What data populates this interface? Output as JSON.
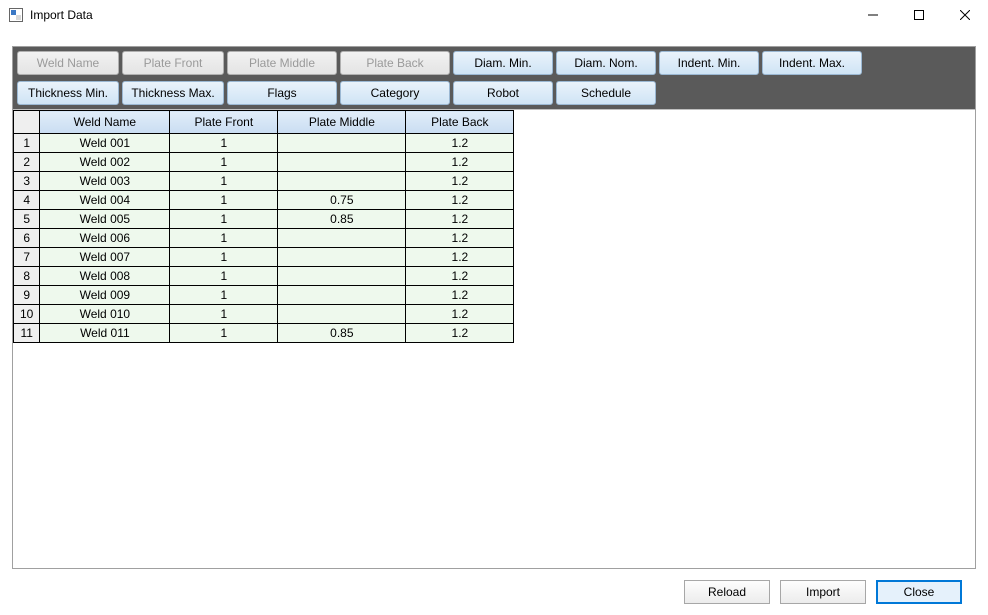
{
  "window": {
    "title": "Import Data",
    "icon_colors": {
      "top_left": "#3b78c4",
      "bottom_right": "#ffffff",
      "border": "#666666"
    }
  },
  "toolbar": {
    "row1": [
      {
        "label": "Weld Name",
        "disabled": true,
        "width": 102
      },
      {
        "label": "Plate Front",
        "disabled": true,
        "width": 102
      },
      {
        "label": "Plate Middle",
        "disabled": true,
        "width": 110
      },
      {
        "label": "Plate Back",
        "disabled": true,
        "width": 110
      },
      {
        "label": "Diam. Min.",
        "disabled": false,
        "width": 100
      },
      {
        "label": "Diam. Nom.",
        "disabled": false,
        "width": 100
      },
      {
        "label": "Indent. Min.",
        "disabled": false,
        "width": 100
      },
      {
        "label": "Indent. Max.",
        "disabled": false,
        "width": 100
      }
    ],
    "row2": [
      {
        "label": "Thickness Min.",
        "disabled": false,
        "width": 102
      },
      {
        "label": "Thickness Max.",
        "disabled": false,
        "width": 102
      },
      {
        "label": "Flags",
        "disabled": false,
        "width": 110
      },
      {
        "label": "Category",
        "disabled": false,
        "width": 110
      },
      {
        "label": "Robot",
        "disabled": false,
        "width": 100
      },
      {
        "label": "Schedule",
        "disabled": false,
        "width": 100
      }
    ],
    "colors": {
      "bg": "#5a5a5a",
      "btn_grad_top": "#eaf3fb",
      "btn_grad_bot": "#cfe4f5",
      "btn_border": "#9bb8d3",
      "btn_disabled_text": "#9a9a9a",
      "btn_disabled_grad_top": "#f2f2f2",
      "btn_disabled_grad_bot": "#e4e4e4",
      "btn_disabled_border": "#b0b0b0"
    }
  },
  "table": {
    "columns": [
      {
        "label": "Weld Name",
        "width": 130
      },
      {
        "label": "Plate Front",
        "width": 108
      },
      {
        "label": "Plate Middle",
        "width": 128
      },
      {
        "label": "Plate Back",
        "width": 108
      }
    ],
    "rows": [
      [
        "Weld 001",
        "1",
        "",
        "1.2"
      ],
      [
        "Weld 002",
        "1",
        "",
        "1.2"
      ],
      [
        "Weld 003",
        "1",
        "",
        "1.2"
      ],
      [
        "Weld 004",
        "1",
        "0.75",
        "1.2"
      ],
      [
        "Weld 005",
        "1",
        "0.85",
        "1.2"
      ],
      [
        "Weld 006",
        "1",
        "",
        "1.2"
      ],
      [
        "Weld 007",
        "1",
        "",
        "1.2"
      ],
      [
        "Weld 008",
        "1",
        "",
        "1.2"
      ],
      [
        "Weld 009",
        "1",
        "",
        "1.2"
      ],
      [
        "Weld 010",
        "1",
        "",
        "1.2"
      ],
      [
        "Weld 011",
        "1",
        "0.85",
        "1.2"
      ]
    ],
    "colors": {
      "header_grad_top": "#e1edf9",
      "header_grad_bot": "#c9ddf2",
      "cell_bg": "#eef9ed",
      "rownum_bg": "#efefef",
      "border": "#000000"
    }
  },
  "footer": {
    "reload": "Reload",
    "import": "Import",
    "close": "Close",
    "primary_border": "#0078d7",
    "primary_bg": "#e5f1fb"
  }
}
